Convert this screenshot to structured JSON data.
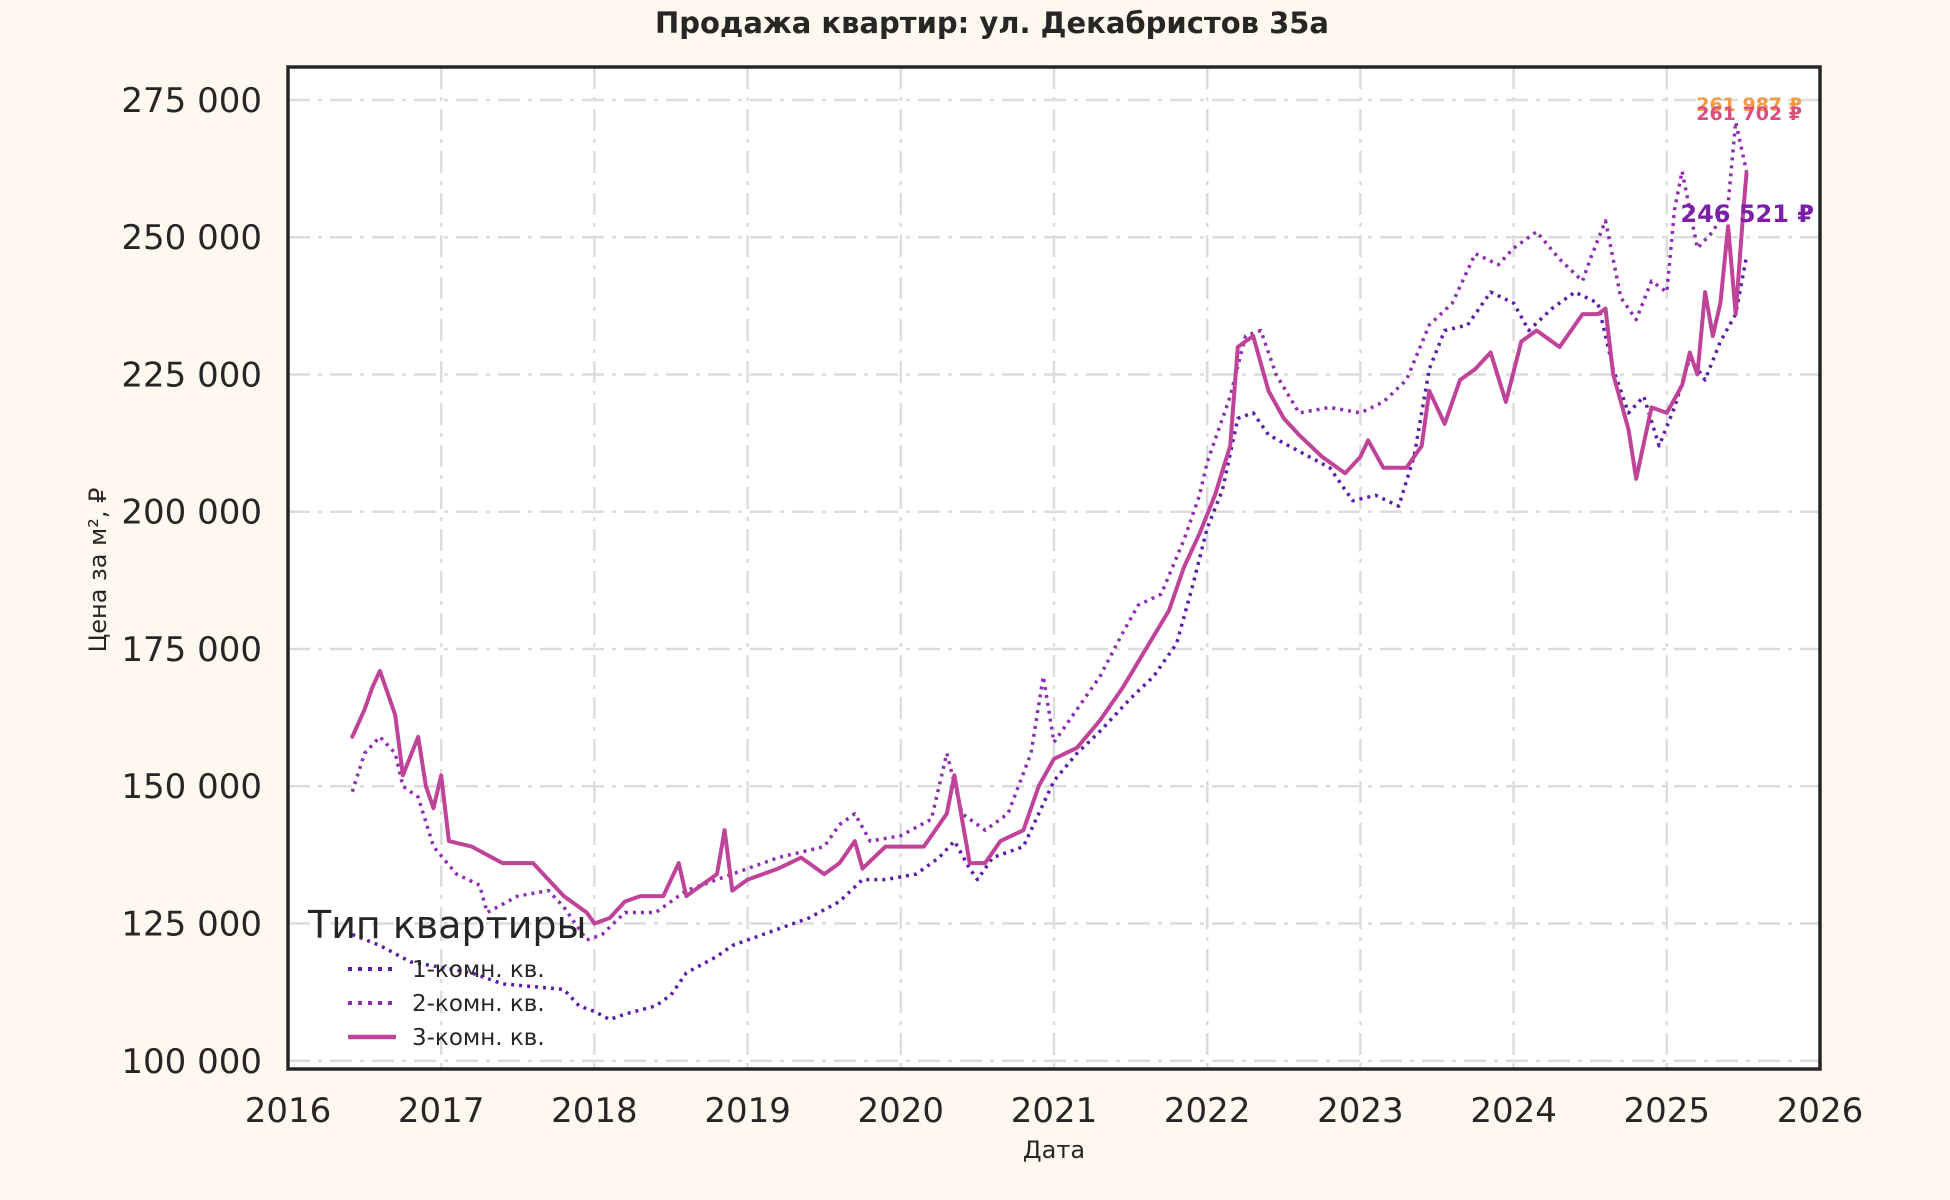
{
  "chart_data": {
    "type": "line",
    "title": "Продажа квартир: ул. Декабристов 35а",
    "xlabel": "Дата",
    "ylabel": "Цена за м², ₽",
    "xlim": [
      2016,
      2026
    ],
    "ylim": [
      98500,
      281000
    ],
    "x_ticks": [
      2016,
      2017,
      2018,
      2019,
      2020,
      2021,
      2022,
      2023,
      2024,
      2025,
      2026
    ],
    "x_tick_labels": [
      "2016",
      "2017",
      "2018",
      "2019",
      "2020",
      "2021",
      "2022",
      "2023",
      "2024",
      "2025",
      "2026"
    ],
    "y_ticks": [
      100000,
      125000,
      150000,
      175000,
      200000,
      225000,
      250000,
      275000
    ],
    "y_tick_labels": [
      "100 000",
      "125 000",
      "150 000",
      "175 000",
      "200 000",
      "225 000",
      "250 000",
      "275 000"
    ],
    "grid": true,
    "legend": {
      "title": "Тип квартиры",
      "position": "lower-left"
    },
    "series": [
      {
        "name": "1-комн. кв.",
        "color": "#5b1fa5",
        "style": "dotted",
        "last_value_label": "246 521 ₽",
        "points": [
          [
            2016.42,
            123000
          ],
          [
            2016.6,
            121000
          ],
          [
            2016.8,
            118000
          ],
          [
            2017.0,
            117000
          ],
          [
            2017.2,
            116000
          ],
          [
            2017.4,
            114000
          ],
          [
            2017.6,
            113500
          ],
          [
            2017.8,
            113000
          ],
          [
            2017.9,
            110000
          ],
          [
            2018.0,
            109000
          ],
          [
            2018.1,
            107500
          ],
          [
            2018.2,
            108500
          ],
          [
            2018.4,
            110000
          ],
          [
            2018.5,
            112000
          ],
          [
            2018.6,
            116000
          ],
          [
            2018.8,
            119000
          ],
          [
            2018.9,
            121000
          ],
          [
            2019.0,
            122000
          ],
          [
            2019.2,
            124000
          ],
          [
            2019.4,
            126000
          ],
          [
            2019.6,
            129000
          ],
          [
            2019.75,
            133000
          ],
          [
            2019.9,
            133000
          ],
          [
            2020.1,
            134000
          ],
          [
            2020.25,
            137000
          ],
          [
            2020.35,
            140000
          ],
          [
            2020.45,
            135000
          ],
          [
            2020.5,
            133000
          ],
          [
            2020.6,
            137000
          ],
          [
            2020.8,
            139000
          ],
          [
            2020.9,
            145000
          ],
          [
            2021.0,
            151000
          ],
          [
            2021.15,
            156000
          ],
          [
            2021.3,
            160000
          ],
          [
            2021.5,
            166000
          ],
          [
            2021.65,
            170000
          ],
          [
            2021.8,
            176000
          ],
          [
            2021.9,
            186000
          ],
          [
            2022.0,
            197000
          ],
          [
            2022.1,
            204000
          ],
          [
            2022.2,
            217000
          ],
          [
            2022.3,
            218000
          ],
          [
            2022.4,
            214000
          ],
          [
            2022.6,
            211000
          ],
          [
            2022.8,
            208000
          ],
          [
            2022.95,
            202000
          ],
          [
            2023.1,
            203000
          ],
          [
            2023.25,
            201000
          ],
          [
            2023.35,
            210000
          ],
          [
            2023.45,
            226000
          ],
          [
            2023.55,
            233000
          ],
          [
            2023.7,
            234000
          ],
          [
            2023.85,
            240000
          ],
          [
            2024.0,
            238000
          ],
          [
            2024.1,
            233000
          ],
          [
            2024.25,
            237000
          ],
          [
            2024.4,
            240000
          ],
          [
            2024.55,
            238000
          ],
          [
            2024.65,
            226000
          ],
          [
            2024.75,
            218000
          ],
          [
            2024.85,
            221000
          ],
          [
            2024.95,
            212000
          ],
          [
            2025.05,
            219000
          ],
          [
            2025.15,
            228000
          ],
          [
            2025.25,
            224000
          ],
          [
            2025.35,
            231000
          ],
          [
            2025.45,
            236000
          ],
          [
            2025.52,
            246521
          ]
        ]
      },
      {
        "name": "2-комн. кв.",
        "color": "#8e2fb0",
        "style": "dotted",
        "last_value_label": "261 987 ₽",
        "points": [
          [
            2016.42,
            149000
          ],
          [
            2016.5,
            156000
          ],
          [
            2016.6,
            159000
          ],
          [
            2016.7,
            156000
          ],
          [
            2016.75,
            150000
          ],
          [
            2016.85,
            148000
          ],
          [
            2016.95,
            139000
          ],
          [
            2017.1,
            134000
          ],
          [
            2017.25,
            132000
          ],
          [
            2017.3,
            127000
          ],
          [
            2017.5,
            130000
          ],
          [
            2017.7,
            131000
          ],
          [
            2017.8,
            128000
          ],
          [
            2017.95,
            122000
          ],
          [
            2018.05,
            123000
          ],
          [
            2018.2,
            127000
          ],
          [
            2018.4,
            127000
          ],
          [
            2018.6,
            131000
          ],
          [
            2018.8,
            133000
          ],
          [
            2019.0,
            135000
          ],
          [
            2019.2,
            137000
          ],
          [
            2019.35,
            138000
          ],
          [
            2019.5,
            139000
          ],
          [
            2019.6,
            143000
          ],
          [
            2019.7,
            145000
          ],
          [
            2019.8,
            140000
          ],
          [
            2020.0,
            141000
          ],
          [
            2020.2,
            144000
          ],
          [
            2020.3,
            156000
          ],
          [
            2020.4,
            145000
          ],
          [
            2020.55,
            142000
          ],
          [
            2020.7,
            145000
          ],
          [
            2020.85,
            156000
          ],
          [
            2020.93,
            170000
          ],
          [
            2021.0,
            158000
          ],
          [
            2021.1,
            162000
          ],
          [
            2021.3,
            170000
          ],
          [
            2021.45,
            178000
          ],
          [
            2021.55,
            183000
          ],
          [
            2021.7,
            185000
          ],
          [
            2021.85,
            195000
          ],
          [
            2021.95,
            203000
          ],
          [
            2022.0,
            209000
          ],
          [
            2022.15,
            221000
          ],
          [
            2022.25,
            232000
          ],
          [
            2022.35,
            233000
          ],
          [
            2022.45,
            225000
          ],
          [
            2022.6,
            218000
          ],
          [
            2022.8,
            219000
          ],
          [
            2023.0,
            218000
          ],
          [
            2023.15,
            220000
          ],
          [
            2023.3,
            224000
          ],
          [
            2023.45,
            234000
          ],
          [
            2023.6,
            238000
          ],
          [
            2023.75,
            247000
          ],
          [
            2023.9,
            245000
          ],
          [
            2024.0,
            248000
          ],
          [
            2024.15,
            251000
          ],
          [
            2024.3,
            246000
          ],
          [
            2024.45,
            242000
          ],
          [
            2024.5,
            246000
          ],
          [
            2024.6,
            253000
          ],
          [
            2024.7,
            239000
          ],
          [
            2024.8,
            235000
          ],
          [
            2024.9,
            242000
          ],
          [
            2025.0,
            240000
          ],
          [
            2025.05,
            255000
          ],
          [
            2025.1,
            262000
          ],
          [
            2025.2,
            248000
          ],
          [
            2025.3,
            251000
          ],
          [
            2025.4,
            256000
          ],
          [
            2025.45,
            271000
          ],
          [
            2025.52,
            261987
          ]
        ]
      },
      {
        "name": "3-комн. кв.",
        "color": "#c0439a",
        "style": "solid",
        "last_value_label": "261 702 ₽",
        "points": [
          [
            2016.42,
            159000
          ],
          [
            2016.5,
            164000
          ],
          [
            2016.55,
            168000
          ],
          [
            2016.6,
            171000
          ],
          [
            2016.7,
            163000
          ],
          [
            2016.75,
            152000
          ],
          [
            2016.85,
            159000
          ],
          [
            2016.9,
            150000
          ],
          [
            2016.95,
            146000
          ],
          [
            2017.0,
            152000
          ],
          [
            2017.05,
            140000
          ],
          [
            2017.2,
            139000
          ],
          [
            2017.4,
            136000
          ],
          [
            2017.6,
            136000
          ],
          [
            2017.7,
            133000
          ],
          [
            2017.8,
            130000
          ],
          [
            2017.95,
            127000
          ],
          [
            2018.0,
            125000
          ],
          [
            2018.1,
            126000
          ],
          [
            2018.2,
            129000
          ],
          [
            2018.3,
            130000
          ],
          [
            2018.45,
            130000
          ],
          [
            2018.55,
            136000
          ],
          [
            2018.6,
            130000
          ],
          [
            2018.7,
            132000
          ],
          [
            2018.8,
            134000
          ],
          [
            2018.85,
            142000
          ],
          [
            2018.9,
            131000
          ],
          [
            2019.0,
            133000
          ],
          [
            2019.2,
            135000
          ],
          [
            2019.35,
            137000
          ],
          [
            2019.5,
            134000
          ],
          [
            2019.6,
            136000
          ],
          [
            2019.7,
            140000
          ],
          [
            2019.75,
            135000
          ],
          [
            2019.9,
            139000
          ],
          [
            2020.0,
            139000
          ],
          [
            2020.15,
            139000
          ],
          [
            2020.3,
            145000
          ],
          [
            2020.35,
            152000
          ],
          [
            2020.45,
            136000
          ],
          [
            2020.55,
            136000
          ],
          [
            2020.65,
            140000
          ],
          [
            2020.8,
            142000
          ],
          [
            2020.9,
            150000
          ],
          [
            2021.0,
            155000
          ],
          [
            2021.15,
            157000
          ],
          [
            2021.3,
            162000
          ],
          [
            2021.45,
            168000
          ],
          [
            2021.6,
            175000
          ],
          [
            2021.75,
            182000
          ],
          [
            2021.85,
            190000
          ],
          [
            2021.95,
            196000
          ],
          [
            2022.05,
            203000
          ],
          [
            2022.15,
            212000
          ],
          [
            2022.2,
            230000
          ],
          [
            2022.3,
            232000
          ],
          [
            2022.4,
            222000
          ],
          [
            2022.5,
            217000
          ],
          [
            2022.6,
            214000
          ],
          [
            2022.75,
            210000
          ],
          [
            2022.9,
            207000
          ],
          [
            2023.0,
            210000
          ],
          [
            2023.05,
            213000
          ],
          [
            2023.15,
            208000
          ],
          [
            2023.3,
            208000
          ],
          [
            2023.4,
            212000
          ],
          [
            2023.45,
            222000
          ],
          [
            2023.55,
            216000
          ],
          [
            2023.65,
            224000
          ],
          [
            2023.75,
            226000
          ],
          [
            2023.85,
            229000
          ],
          [
            2023.95,
            220000
          ],
          [
            2024.05,
            231000
          ],
          [
            2024.15,
            233000
          ],
          [
            2024.3,
            230000
          ],
          [
            2024.45,
            236000
          ],
          [
            2024.55,
            236000
          ],
          [
            2024.6,
            237000
          ],
          [
            2024.65,
            225000
          ],
          [
            2024.75,
            215000
          ],
          [
            2024.8,
            206000
          ],
          [
            2024.9,
            219000
          ],
          [
            2025.0,
            218000
          ],
          [
            2025.1,
            223000
          ],
          [
            2025.15,
            229000
          ],
          [
            2025.2,
            225000
          ],
          [
            2025.25,
            240000
          ],
          [
            2025.3,
            232000
          ],
          [
            2025.35,
            238000
          ],
          [
            2025.4,
            252000
          ],
          [
            2025.45,
            236000
          ],
          [
            2025.5,
            255000
          ],
          [
            2025.52,
            261702
          ]
        ]
      }
    ]
  }
}
